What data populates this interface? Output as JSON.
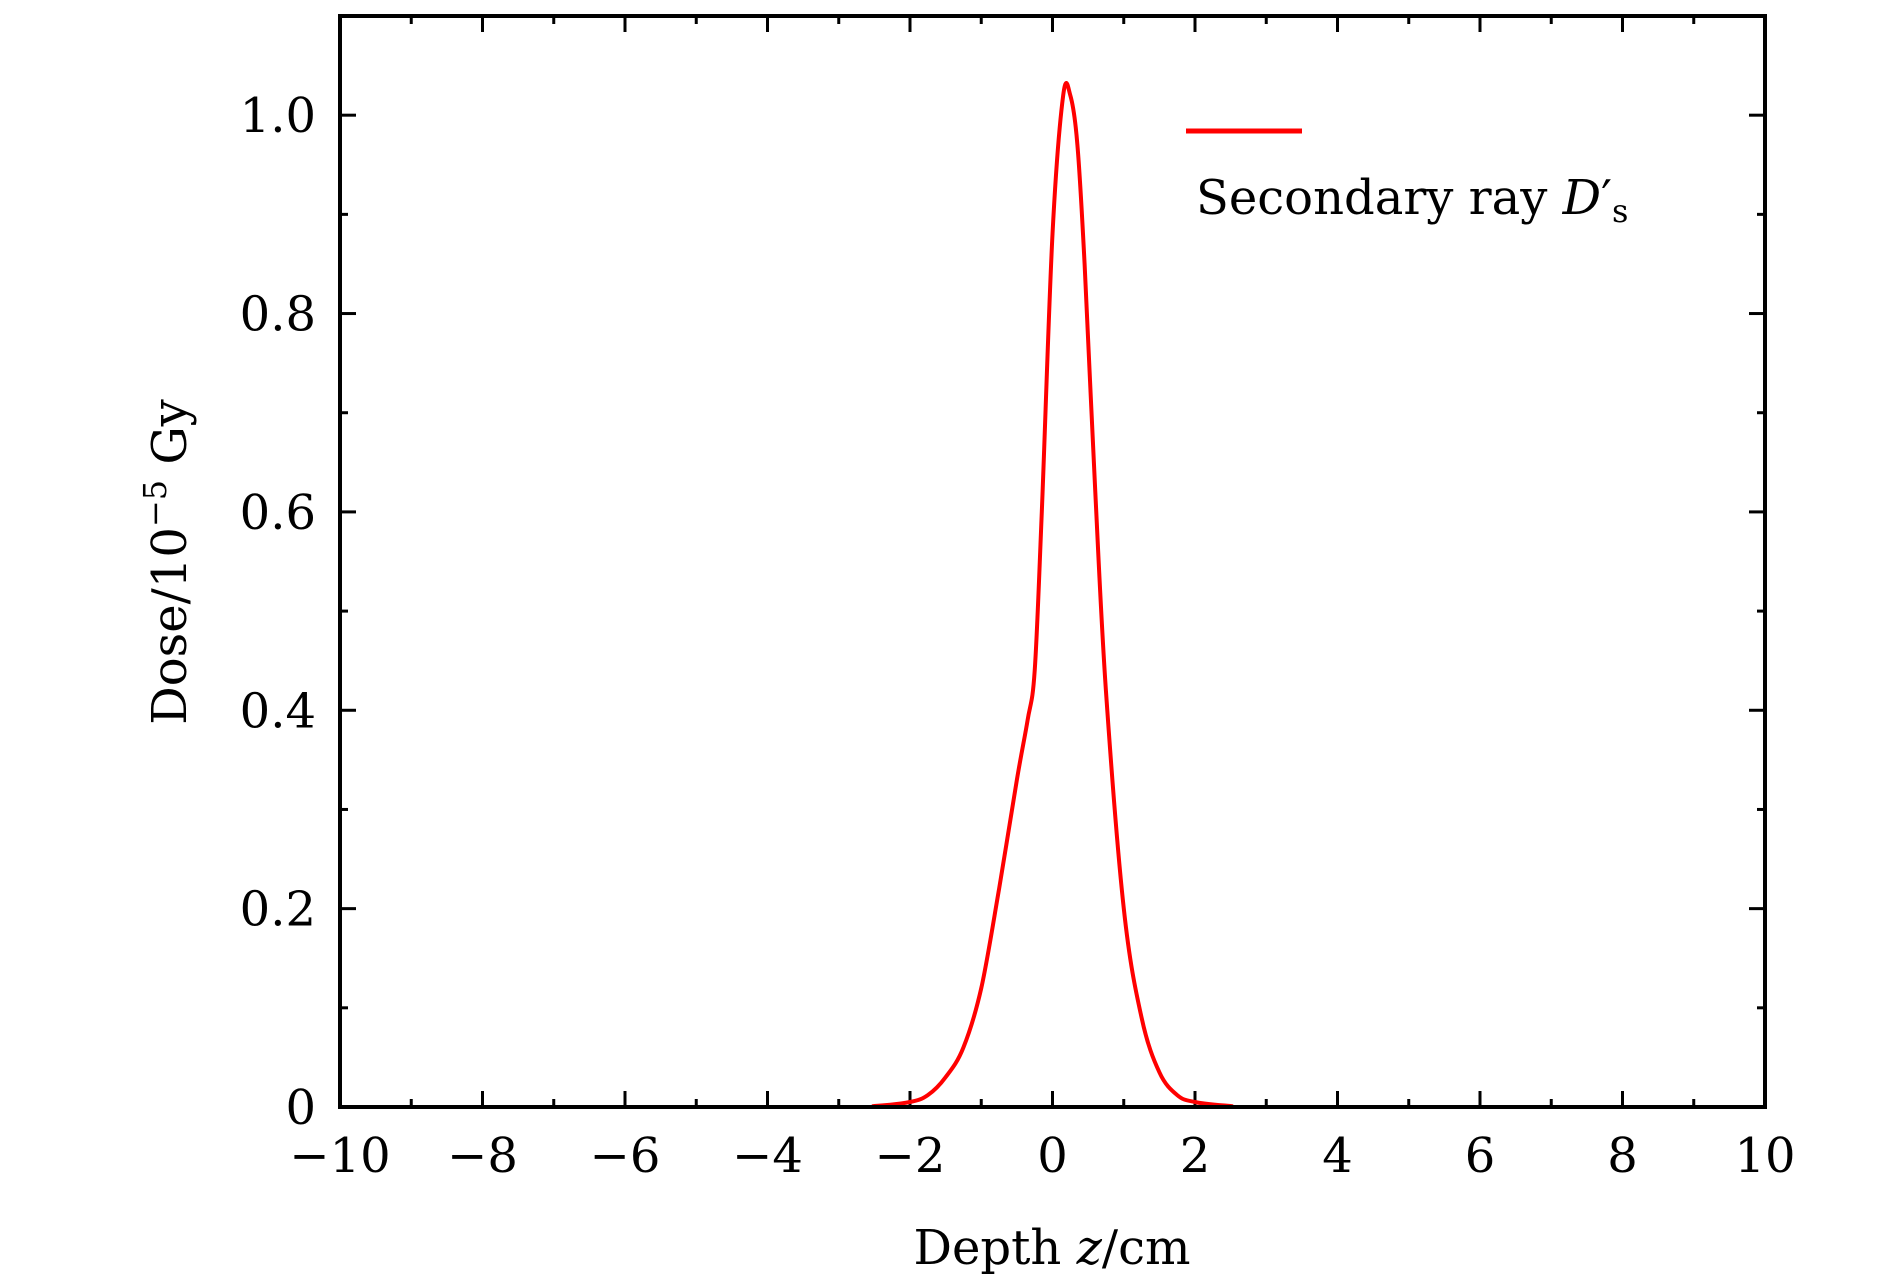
{
  "chart_data": {
    "type": "line",
    "xlabel_prefix": "Depth ",
    "xlabel_var": "z",
    "xlabel_suffix": "/cm",
    "ylabel_prefix": "Dose/10",
    "ylabel_exp": "−5",
    "ylabel_suffix": " Gy",
    "xlim": [
      -10,
      10
    ],
    "ylim": [
      0,
      1.1
    ],
    "x_ticks": [
      -10,
      -8,
      -6,
      -4,
      -2,
      0,
      2,
      4,
      6,
      8,
      10
    ],
    "x_tick_labels": [
      "−10",
      "−8",
      "−6",
      "−4",
      "−2",
      "0",
      "2",
      "4",
      "6",
      "8",
      "10"
    ],
    "x_minor_step": 1,
    "y_ticks": [
      0,
      0.2,
      0.4,
      0.6,
      0.8,
      1.0
    ],
    "y_tick_labels": [
      "0",
      "0.2",
      "0.4",
      "0.6",
      "0.8",
      "1.0"
    ],
    "y_minor_step": 0.1,
    "grid": false,
    "legend_position": "top-right",
    "series": [
      {
        "name_prefix": "Secondary ray ",
        "name_symbol": "D",
        "name_prime": "′",
        "name_sub": "s",
        "color": "#ff0000",
        "x": [
          -10,
          -3,
          -2.5,
          -2.0,
          -1.75,
          -1.5,
          -1.25,
          -1.0,
          -0.75,
          -0.5,
          -0.35,
          -0.25,
          -0.15,
          0.0,
          0.15,
          0.25,
          0.35,
          0.45,
          0.6,
          0.75,
          1.0,
          1.25,
          1.5,
          1.75,
          2.0,
          2.5,
          3.0,
          10
        ],
        "y": [
          0,
          0,
          0.001,
          0.005,
          0.012,
          0.03,
          0.06,
          0.12,
          0.22,
          0.33,
          0.39,
          0.44,
          0.6,
          0.88,
          1.02,
          1.02,
          0.97,
          0.85,
          0.62,
          0.42,
          0.2,
          0.09,
          0.035,
          0.012,
          0.005,
          0.001,
          0,
          0
        ]
      }
    ]
  }
}
